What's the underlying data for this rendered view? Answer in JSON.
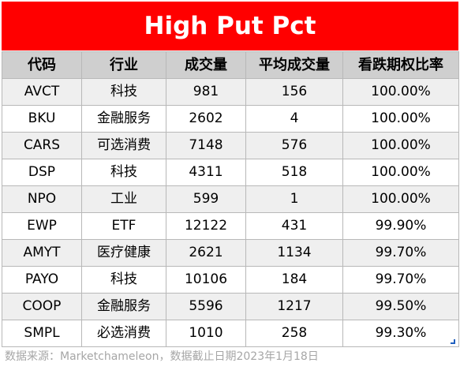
{
  "title": "High Put Pct",
  "columns": [
    "代码",
    "行业",
    "成交量",
    "平均成交量",
    "看跌期权比率"
  ],
  "rows": [
    [
      "AVCT",
      "科技",
      "981",
      "156",
      "100.00%"
    ],
    [
      "BKU",
      "金融服务",
      "2602",
      "4",
      "100.00%"
    ],
    [
      "CARS",
      "可选消费",
      "7148",
      "576",
      "100.00%"
    ],
    [
      "DSP",
      "科技",
      "4311",
      "518",
      "100.00%"
    ],
    [
      "NPO",
      "工业",
      "599",
      "1",
      "100.00%"
    ],
    [
      "EWP",
      "ETF",
      "12122",
      "431",
      "99.90%"
    ],
    [
      "AMYT",
      "医疗健康",
      "2621",
      "1134",
      "99.70%"
    ],
    [
      "PAYO",
      "科技",
      "10106",
      "184",
      "99.70%"
    ],
    [
      "COOP",
      "金融服务",
      "5596",
      "1217",
      "99.50%"
    ],
    [
      "SMPL",
      "必选消费",
      "1010",
      "258",
      "99.30%"
    ]
  ],
  "footnote": "数据来源：Marketchameleon，数据截止日期2023年1月18日",
  "colors": {
    "title_bg": "#ff0000",
    "title_text": "#ffffff",
    "header_bg": "#cfcfcf",
    "row_even_bg": "#efefef",
    "row_odd_bg": "#ffffff",
    "footnote_text": "#a6a6a6"
  }
}
